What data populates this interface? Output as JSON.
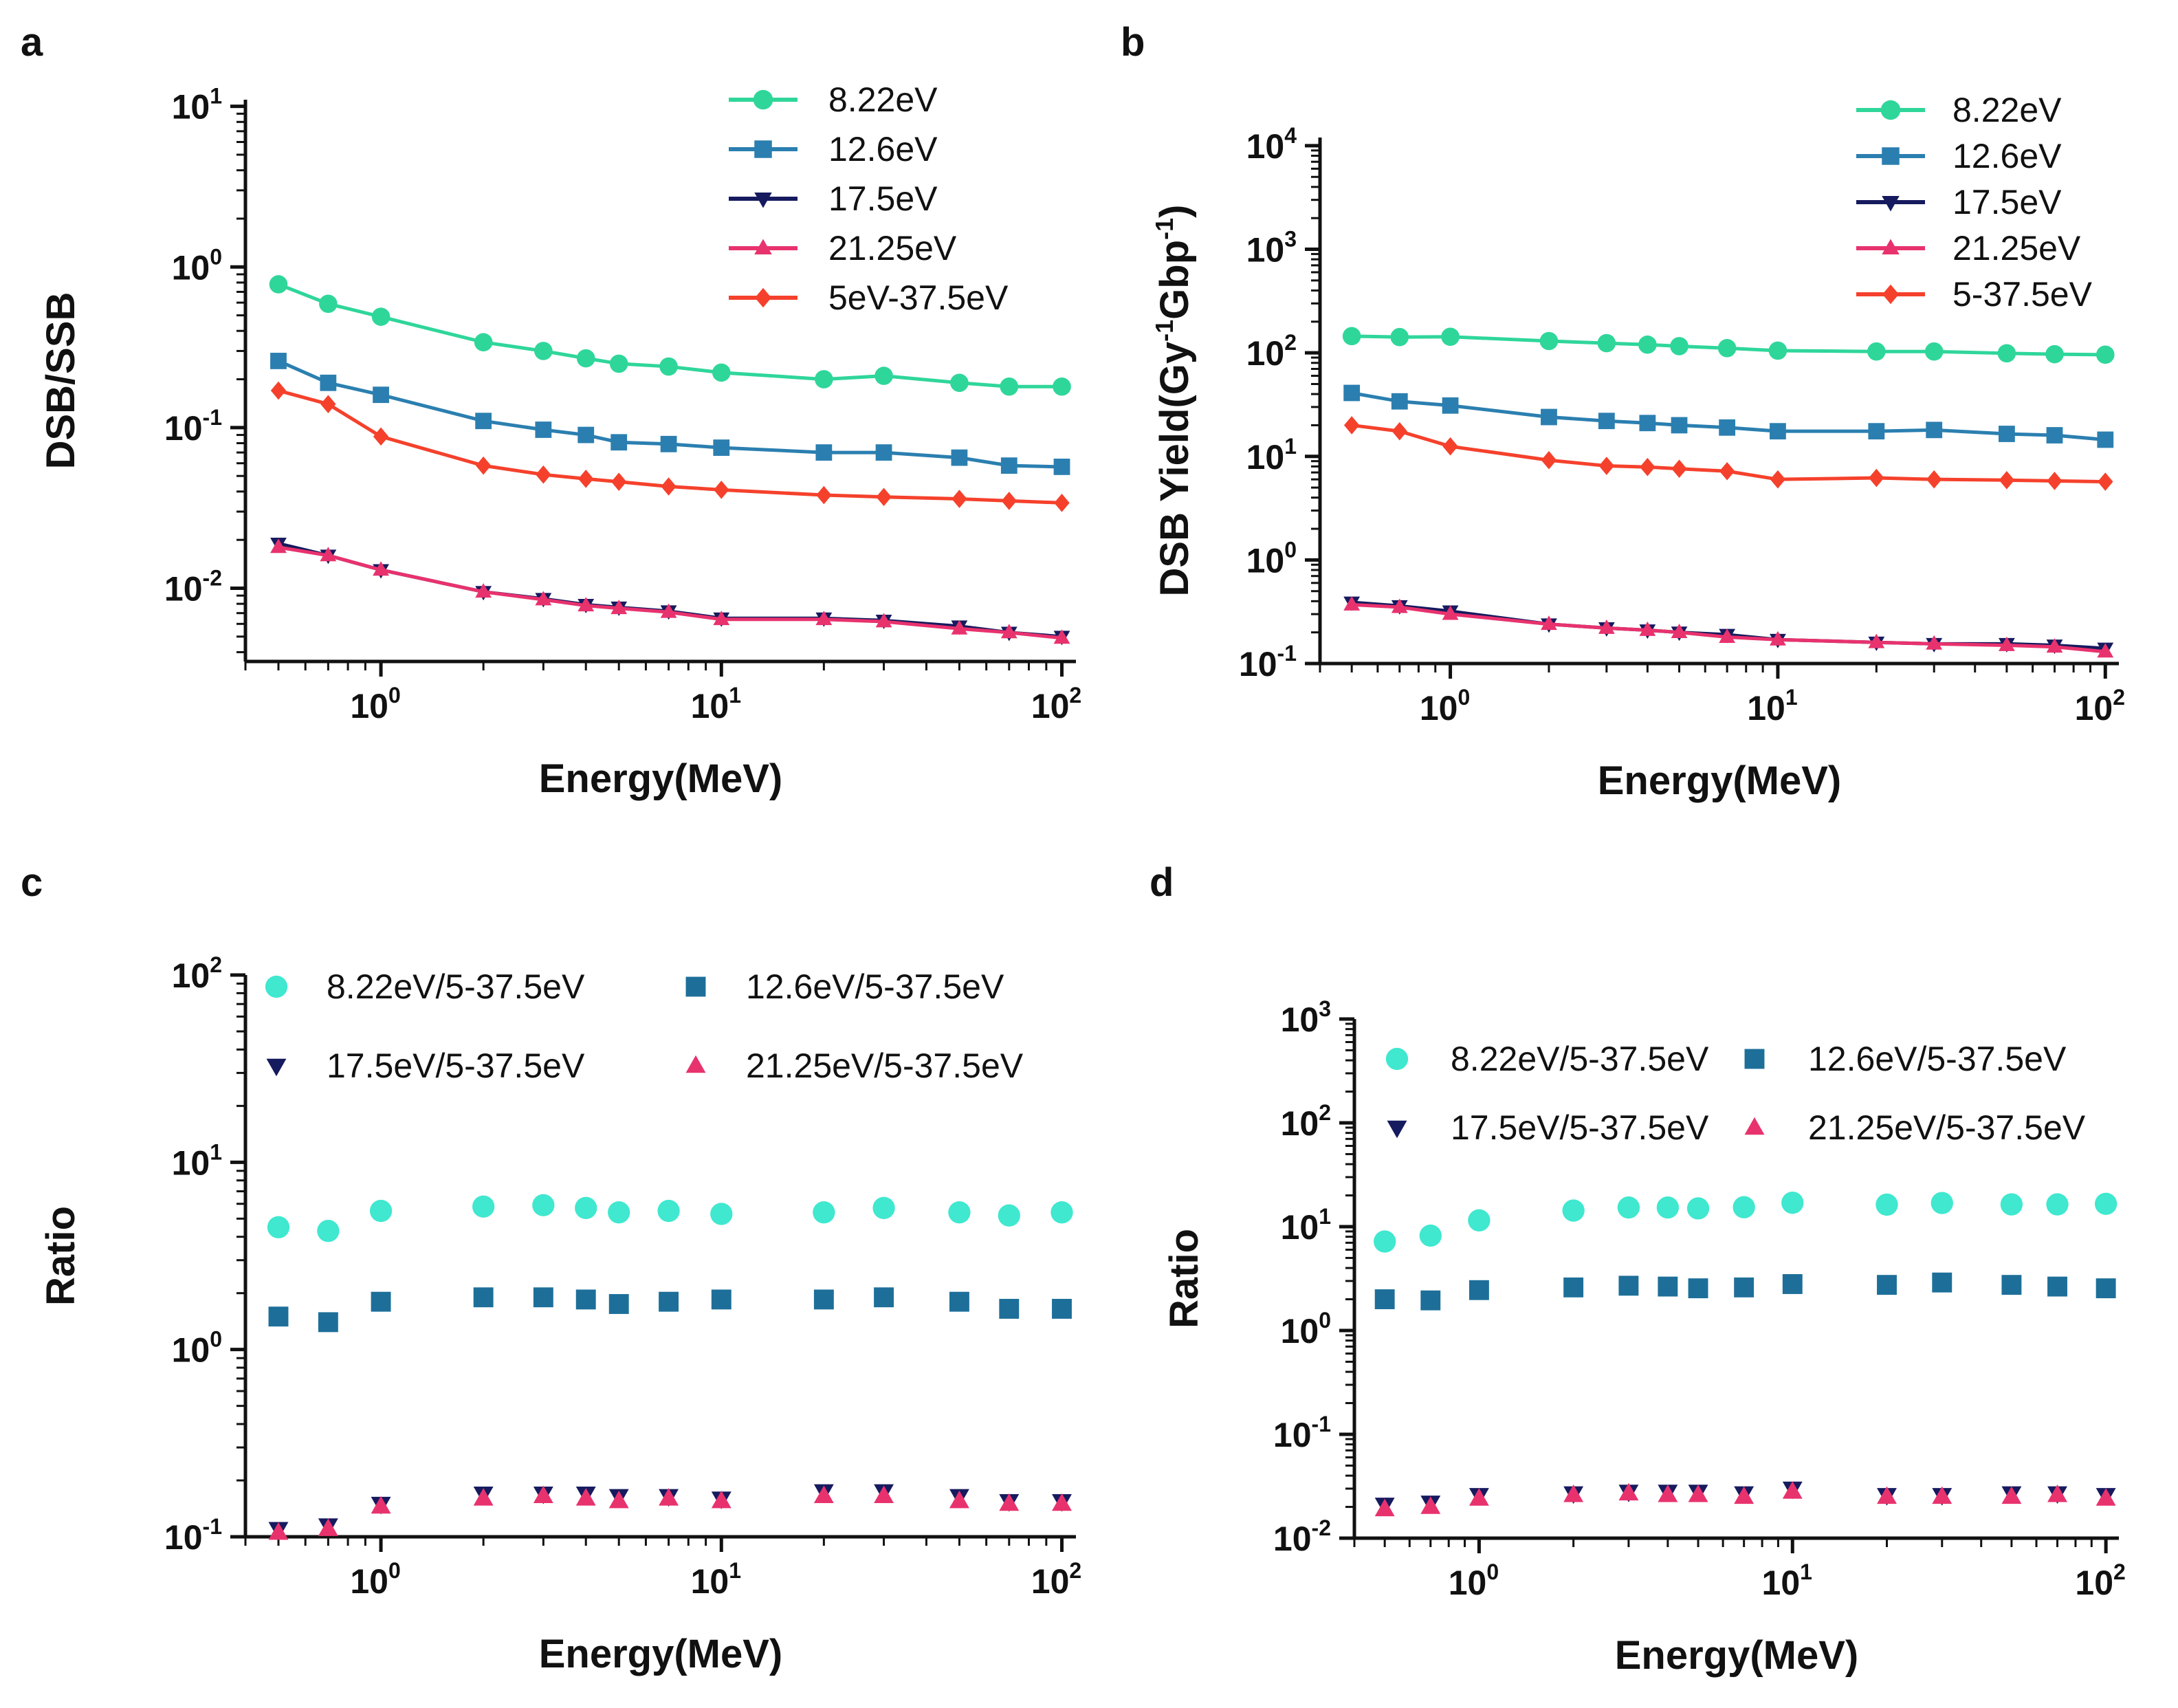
{
  "figure": {
    "panels": [
      "a",
      "b",
      "c",
      "d"
    ]
  },
  "colors": {
    "8.22eV": "#2fd69a",
    "12.6eV": "#2b7fb0",
    "17.5eV": "#161a5e",
    "21.25eV": "#e8326e",
    "combined": "#f5412c",
    "cyan": "#3fe8cf",
    "teal": "#1d6f99"
  },
  "chart_data": [
    {
      "panel": "a",
      "type": "line",
      "xscale": "log",
      "yscale": "log",
      "xlabel": "Energy(MeV)",
      "ylabel": "DSB/SSB",
      "xlim": [
        0.4,
        110
      ],
      "ylim": [
        0.0035,
        11
      ],
      "xticks": [
        {
          "base": "10",
          "exp": "0",
          "v": 1
        },
        {
          "base": "10",
          "exp": "1",
          "v": 10
        },
        {
          "base": "10",
          "exp": "2",
          "v": 100
        }
      ],
      "yticks": [
        {
          "base": "10",
          "exp": "-2",
          "v": 0.01
        },
        {
          "base": "10",
          "exp": "-1",
          "v": 0.1
        },
        {
          "base": "10",
          "exp": "0",
          "v": 1
        },
        {
          "base": "10",
          "exp": "1",
          "v": 10
        }
      ],
      "legend": "top-right",
      "x": [
        0.5,
        0.7,
        1,
        2,
        3,
        4,
        5,
        7,
        10,
        20,
        30,
        50,
        70,
        100
      ],
      "series": [
        {
          "name": "8.22eV",
          "color": "#2fd69a",
          "marker": "circle",
          "line": true,
          "values": [
            0.78,
            0.59,
            0.49,
            0.34,
            0.3,
            0.27,
            0.25,
            0.24,
            0.22,
            0.2,
            0.21,
            0.19,
            0.18,
            0.18
          ]
        },
        {
          "name": "12.6eV",
          "color": "#2b7fb0",
          "marker": "square",
          "line": true,
          "values": [
            0.26,
            0.19,
            0.16,
            0.11,
            0.097,
            0.09,
            0.081,
            0.079,
            0.075,
            0.07,
            0.07,
            0.065,
            0.058,
            0.057
          ]
        },
        {
          "name": "17.5eV",
          "color": "#161a5e",
          "marker": "triangle-down",
          "line": true,
          "values": [
            0.019,
            0.016,
            0.013,
            0.0095,
            0.0086,
            0.0079,
            0.0076,
            0.0072,
            0.0065,
            0.0065,
            0.0063,
            0.0058,
            0.0053,
            0.005
          ]
        },
        {
          "name": "21.25eV",
          "color": "#e8326e",
          "marker": "triangle-up",
          "line": true,
          "values": [
            0.018,
            0.016,
            0.013,
            0.0095,
            0.0085,
            0.0078,
            0.0075,
            0.0071,
            0.0064,
            0.0064,
            0.0062,
            0.0056,
            0.0053,
            0.0049
          ]
        },
        {
          "name": "5eV-37.5eV",
          "color": "#f5412c",
          "marker": "diamond",
          "line": true,
          "values": [
            0.17,
            0.14,
            0.088,
            0.058,
            0.051,
            0.048,
            0.046,
            0.043,
            0.041,
            0.038,
            0.037,
            0.036,
            0.035,
            0.034
          ]
        }
      ]
    },
    {
      "panel": "b",
      "type": "line",
      "xscale": "log",
      "yscale": "log",
      "xlabel": "Energy(MeV)",
      "ylabel_parts": [
        "DSB Yield(Gy",
        "-1",
        "Gbp",
        "-1",
        ")"
      ],
      "xlim": [
        0.4,
        110
      ],
      "ylim": [
        0.1,
        12000
      ],
      "xticks": [
        {
          "base": "10",
          "exp": "0",
          "v": 1
        },
        {
          "base": "10",
          "exp": "1",
          "v": 10
        },
        {
          "base": "10",
          "exp": "2",
          "v": 100
        }
      ],
      "yticks": [
        {
          "base": "10",
          "exp": "-1",
          "v": 0.1
        },
        {
          "base": "10",
          "exp": "0",
          "v": 1
        },
        {
          "base": "10",
          "exp": "1",
          "v": 10
        },
        {
          "base": "10",
          "exp": "2",
          "v": 100
        },
        {
          "base": "10",
          "exp": "3",
          "v": 1000
        },
        {
          "base": "10",
          "exp": "4",
          "v": 10000
        }
      ],
      "legend": "top-right",
      "x": [
        0.5,
        0.7,
        1,
        2,
        3,
        4,
        5,
        7,
        10,
        20,
        30,
        50,
        70,
        100
      ],
      "series": [
        {
          "name": "8.22eV",
          "color": "#2fd69a",
          "marker": "circle",
          "line": true,
          "values": [
            145,
            142,
            143,
            130,
            124,
            120,
            116,
            111,
            105,
            103,
            103,
            99,
            97,
            96
          ]
        },
        {
          "name": "12.6eV",
          "color": "#2b7fb0",
          "marker": "square",
          "line": true,
          "values": [
            41,
            34,
            31,
            24,
            22,
            21,
            20,
            19,
            17.5,
            17.5,
            18,
            16.5,
            16,
            14.5
          ]
        },
        {
          "name": "17.5eV",
          "color": "#161a5e",
          "marker": "triangle-down",
          "line": true,
          "values": [
            0.39,
            0.36,
            0.32,
            0.24,
            0.22,
            0.21,
            0.2,
            0.19,
            0.17,
            0.16,
            0.155,
            0.155,
            0.15,
            0.14
          ]
        },
        {
          "name": "21.25eV",
          "color": "#e8326e",
          "marker": "triangle-up",
          "line": true,
          "values": [
            0.37,
            0.35,
            0.3,
            0.24,
            0.22,
            0.21,
            0.2,
            0.18,
            0.17,
            0.16,
            0.155,
            0.15,
            0.145,
            0.13
          ]
        },
        {
          "name": "5-37.5eV",
          "color": "#f5412c",
          "marker": "diamond",
          "line": true,
          "values": [
            20,
            17.5,
            12.5,
            9.2,
            8.1,
            7.9,
            7.6,
            7.2,
            6.0,
            6.2,
            6.0,
            5.9,
            5.8,
            5.7
          ]
        }
      ]
    },
    {
      "panel": "c",
      "type": "scatter",
      "xscale": "log",
      "yscale": "log",
      "xlabel": "Energy(MeV)",
      "ylabel": "Ratio",
      "xlim": [
        0.4,
        110
      ],
      "ylim": [
        0.1,
        100
      ],
      "xticks": [
        {
          "base": "10",
          "exp": "0",
          "v": 1
        },
        {
          "base": "10",
          "exp": "1",
          "v": 10
        },
        {
          "base": "10",
          "exp": "2",
          "v": 100
        }
      ],
      "yticks": [
        {
          "base": "10",
          "exp": "-1",
          "v": 0.1
        },
        {
          "base": "10",
          "exp": "0",
          "v": 1
        },
        {
          "base": "10",
          "exp": "1",
          "v": 10
        },
        {
          "base": "10",
          "exp": "2",
          "v": 100
        }
      ],
      "legend": "top",
      "x": [
        0.5,
        0.7,
        1,
        2,
        3,
        4,
        5,
        7,
        10,
        20,
        30,
        50,
        70,
        100
      ],
      "series": [
        {
          "name": "8.22eV/5-37.5eV",
          "color": "#3fe8cf",
          "marker": "circle",
          "line": false,
          "values": [
            4.5,
            4.3,
            5.5,
            5.8,
            5.9,
            5.7,
            5.4,
            5.5,
            5.3,
            5.4,
            5.7,
            5.4,
            5.2,
            5.4
          ]
        },
        {
          "name": "12.6eV/5-37.5eV",
          "color": "#1d6f99",
          "marker": "square",
          "line": false,
          "values": [
            1.5,
            1.4,
            1.8,
            1.9,
            1.9,
            1.85,
            1.75,
            1.8,
            1.85,
            1.85,
            1.9,
            1.8,
            1.65,
            1.65
          ]
        },
        {
          "name": "17.5eV/5-37.5eV",
          "color": "#161a5e",
          "marker": "triangle-down",
          "line": false,
          "values": [
            0.11,
            0.115,
            0.15,
            0.17,
            0.17,
            0.17,
            0.165,
            0.165,
            0.16,
            0.175,
            0.175,
            0.165,
            0.155,
            0.155
          ]
        },
        {
          "name": "21.25eV/5-37.5eV",
          "color": "#e8326e",
          "marker": "triangle-up",
          "line": false,
          "values": [
            0.105,
            0.11,
            0.145,
            0.16,
            0.165,
            0.16,
            0.155,
            0.16,
            0.155,
            0.165,
            0.165,
            0.155,
            0.15,
            0.15
          ]
        }
      ]
    },
    {
      "panel": "d",
      "type": "scatter",
      "xscale": "log",
      "yscale": "log",
      "xlabel": "Energy(MeV)",
      "ylabel": "Ratio",
      "xlim": [
        0.4,
        110
      ],
      "ylim": [
        0.01,
        1000
      ],
      "xticks": [
        {
          "base": "10",
          "exp": "0",
          "v": 1
        },
        {
          "base": "10",
          "exp": "1",
          "v": 10
        },
        {
          "base": "10",
          "exp": "2",
          "v": 100
        }
      ],
      "yticks": [
        {
          "base": "10",
          "exp": "-2",
          "v": 0.01
        },
        {
          "base": "10",
          "exp": "-1",
          "v": 0.1
        },
        {
          "base": "10",
          "exp": "0",
          "v": 1
        },
        {
          "base": "10",
          "exp": "1",
          "v": 10
        },
        {
          "base": "10",
          "exp": "2",
          "v": 100
        },
        {
          "base": "10",
          "exp": "3",
          "v": 1000
        }
      ],
      "legend": "top",
      "x": [
        0.5,
        0.7,
        1,
        2,
        3,
        4,
        5,
        7,
        10,
        20,
        30,
        50,
        70,
        100
      ],
      "series": [
        {
          "name": "8.22eV/5-37.5eV",
          "color": "#3fe8cf",
          "marker": "circle",
          "line": false,
          "values": [
            7.2,
            8.2,
            11.5,
            14.3,
            15.3,
            15.3,
            15.0,
            15.4,
            17.0,
            16.3,
            16.9,
            16.4,
            16.4,
            16.6
          ]
        },
        {
          "name": "12.6eV/5-37.5eV",
          "color": "#1d6f99",
          "marker": "square",
          "line": false,
          "values": [
            2.0,
            1.95,
            2.45,
            2.6,
            2.7,
            2.65,
            2.55,
            2.6,
            2.8,
            2.75,
            2.9,
            2.75,
            2.65,
            2.55
          ]
        },
        {
          "name": "17.5eV/5-37.5eV",
          "color": "#161a5e",
          "marker": "triangle-down",
          "line": false,
          "values": [
            0.021,
            0.022,
            0.026,
            0.027,
            0.028,
            0.028,
            0.028,
            0.027,
            0.03,
            0.026,
            0.026,
            0.027,
            0.027,
            0.026
          ]
        },
        {
          "name": "21.25eV/5-37.5eV",
          "color": "#e8326e",
          "marker": "triangle-up",
          "line": false,
          "values": [
            0.019,
            0.02,
            0.024,
            0.026,
            0.027,
            0.026,
            0.026,
            0.025,
            0.028,
            0.025,
            0.025,
            0.025,
            0.026,
            0.024
          ]
        }
      ]
    }
  ]
}
